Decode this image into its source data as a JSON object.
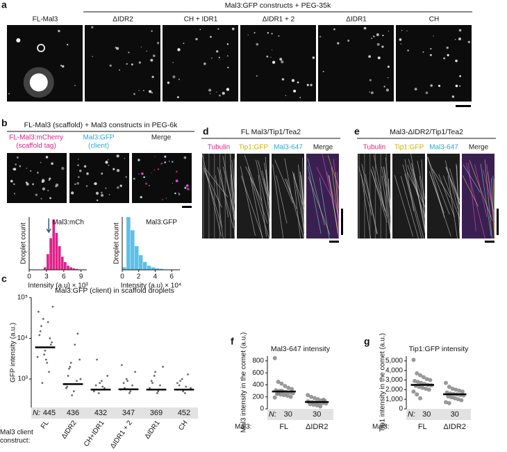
{
  "a": {
    "label": "a",
    "title": "Mal3:GFP constructs + PEG-35k",
    "images": [
      "FL-Mal3",
      "ΔIDR2",
      "CH + IDR1",
      "ΔIDR1 + 2",
      "ΔIDR1",
      "CH"
    ]
  },
  "b": {
    "label": "b",
    "title": "FL-Mal3 (scaffold) + Mal3 constructs in PEG-6k",
    "channels": [
      {
        "lines": [
          "FL-Mal3:mCherry",
          "(scaffold tag)"
        ],
        "color": "#e0218a"
      },
      {
        "lines": [
          "Mal3:GFP",
          "(client)"
        ],
        "color": "#29a9d6"
      },
      {
        "lines": [
          "Merge"
        ],
        "color": "#222222"
      }
    ],
    "histograms": [
      {
        "type": "histogram",
        "name": "Mal3:mCh",
        "ylabel": "Droplet count",
        "xlabel": "Intensity (a.u) × 10³",
        "bins": [
          2.5,
          3,
          3.5,
          4,
          4.5,
          5,
          5.5,
          6,
          6.5,
          7,
          7.5,
          8,
          8.5,
          9,
          9.5
        ],
        "counts": [
          5,
          30,
          60,
          95,
          70,
          45,
          25,
          15,
          8,
          5,
          3,
          2,
          1,
          1
        ],
        "color": "#e0218a",
        "xlim": [
          0,
          10
        ],
        "xticks": [
          0,
          3,
          6,
          9
        ],
        "ylim": [
          0,
          100
        ],
        "arrow_x": 3.4
      },
      {
        "type": "histogram",
        "name": "Mal3:GFP",
        "ylabel": "Droplet count",
        "xlabel": "Intensity (a.u) × 10⁴",
        "bins": [
          0,
          0.5,
          1,
          1.5,
          2,
          2.5,
          3,
          3.5,
          4,
          4.5,
          5,
          5.5,
          6
        ],
        "counts": [
          5,
          100,
          75,
          45,
          28,
          15,
          8,
          5,
          3,
          2,
          1,
          1
        ],
        "color": "#5bc0e8",
        "xlim": [
          0,
          7
        ],
        "xticks": [
          0,
          2,
          4,
          6
        ],
        "ylim": [
          0,
          100
        ]
      }
    ]
  },
  "c": {
    "label": "c",
    "chart": {
      "type": "strip",
      "title": "Mal3:GFP (client) in scaffold droplets",
      "ylabel": "GFP intensity (a.u.)",
      "log": true,
      "ylim": [
        200,
        100000
      ],
      "yticks": [
        {
          "value": 1000,
          "label": "10³"
        },
        {
          "value": 10000,
          "label": "10⁴"
        },
        {
          "value": 100000,
          "label": "10⁵"
        }
      ],
      "categories": [
        "FL",
        "ΔIDR2",
        "CH+IDR1",
        "ΔIDR1 + 2",
        "ΔIDR1",
        "CH"
      ],
      "medians": [
        6000,
        750,
        550,
        560,
        550,
        550
      ],
      "points": [
        [
          6000,
          15000,
          30000,
          3000,
          1500,
          8000,
          45000,
          20000,
          4000,
          2500,
          10000,
          60000,
          12000,
          800,
          5000,
          25000,
          7000,
          3500
        ],
        [
          750,
          1200,
          2500,
          500,
          900,
          3000,
          600,
          1800,
          400,
          7000,
          13000,
          1000,
          650,
          2000
        ],
        [
          550,
          700,
          450,
          900,
          600,
          1200,
          500,
          3000,
          800,
          650
        ],
        [
          550,
          800,
          1000,
          450,
          700,
          1500,
          2200,
          600,
          900,
          500
        ],
        [
          550,
          900,
          1200,
          450,
          700,
          2000,
          600,
          800,
          1500,
          500
        ],
        [
          550,
          700,
          1000,
          450,
          1300,
          600,
          800,
          900,
          500,
          650
        ]
      ],
      "n_label": "N:",
      "n": [
        445,
        436,
        432,
        347,
        369,
        452
      ],
      "row_label": [
        "Mal3 client",
        "construct:"
      ]
    }
  },
  "d": {
    "label": "d",
    "title": "FL Mal3/Tip1/Tea2",
    "channels": [
      {
        "name": "Tubulin",
        "color": "#e0218a"
      },
      {
        "name": "Tip1:GFP",
        "color": "#c8b400"
      },
      {
        "name": "Mal3-647",
        "color": "#29a9d6"
      },
      {
        "name": "Merge",
        "color": "#222222"
      }
    ]
  },
  "e": {
    "label": "e",
    "title": "Mal3-ΔIDR2/Tip1/Tea2",
    "channels": [
      {
        "name": "Tubulin",
        "color": "#e0218a"
      },
      {
        "name": "Tip1:GFP",
        "color": "#c8b400"
      },
      {
        "name": "Mal3-647",
        "color": "#29a9d6"
      },
      {
        "name": "Merge",
        "color": "#222222"
      }
    ]
  },
  "f": {
    "label": "f",
    "chart": {
      "type": "strip",
      "title": "Mal3-647 intensity",
      "ylabel": "Mal3 intensity in the comet (a.u.)",
      "ylim": [
        0,
        880
      ],
      "yticks": [
        0,
        200,
        400,
        600,
        800
      ],
      "categories": [
        "FL",
        "ΔIDR2"
      ],
      "medians": [
        290,
        115
      ],
      "points": [
        [
          845,
          450,
          420,
          380,
          350,
          330,
          310,
          300,
          290,
          280,
          270,
          260,
          250,
          240,
          230,
          220,
          200,
          190,
          260,
          300
        ],
        [
          230,
          200,
          180,
          160,
          140,
          130,
          120,
          115,
          110,
          100,
          95,
          90,
          80,
          70,
          60,
          40,
          150,
          125
        ]
      ],
      "n_label": "N:",
      "n": [
        30,
        30
      ],
      "row_label": [
        "Mal3:"
      ]
    }
  },
  "g": {
    "label": "g",
    "chart": {
      "type": "strip",
      "title": "Tip1:GFP intensity",
      "ylabel": "Tip1 intensity in the comet (a.u.)",
      "ylim": [
        0,
        5500
      ],
      "yticks": [
        0,
        {
          "value": 1000,
          "label": "1,000"
        },
        {
          "value": 2000,
          "label": "2,000"
        },
        {
          "value": 3000,
          "label": "3,000"
        },
        {
          "value": 4000,
          "label": "4,000"
        },
        {
          "value": 5000,
          "label": "5,000"
        }
      ],
      "categories": [
        "FL",
        "ΔIDR2"
      ],
      "medians": [
        2500,
        1520
      ],
      "points": [
        [
          5100,
          3700,
          3500,
          3300,
          3100,
          3000,
          2900,
          2800,
          2700,
          2600,
          2500,
          2450,
          2400,
          2300,
          2200,
          2100,
          2000,
          1800,
          1500,
          1100
        ],
        [
          2700,
          2300,
          2100,
          2000,
          1900,
          1800,
          1700,
          1600,
          1550,
          1500,
          1450,
          1400,
          1300,
          1200,
          1100,
          1000,
          900,
          700,
          600
        ]
      ],
      "n_label": "N:",
      "n": [
        30,
        30
      ],
      "row_label": [
        "Mal3:"
      ]
    }
  }
}
